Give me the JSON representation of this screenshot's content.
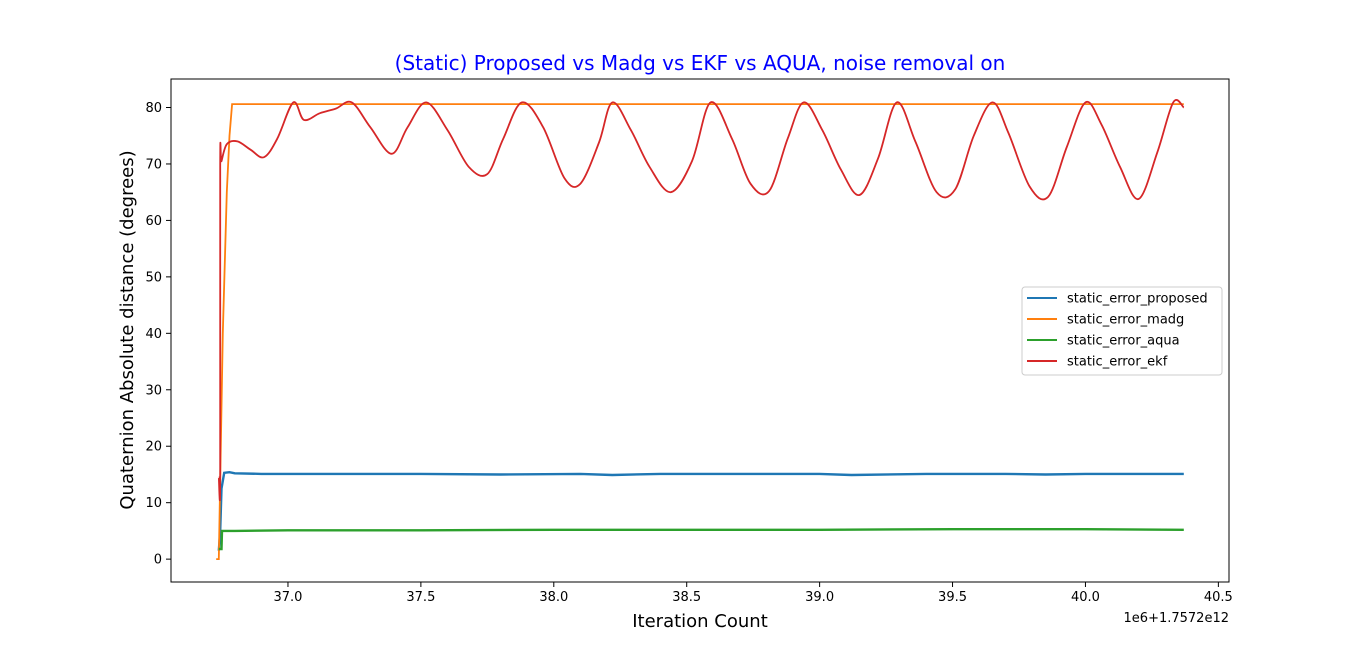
{
  "chart_data": {
    "type": "line",
    "title": "(Static) Proposed vs Madg vs EKF vs AQUA, noise removal on",
    "title_color": "#0000ff",
    "xlabel": "Iteration Count",
    "ylabel": "Quaternion Absolute distance (degrees)",
    "x_offset_label": "1e6+1.7572e12",
    "xlim": [
      36.56,
      40.54
    ],
    "ylim": [
      -4.05,
      85.05
    ],
    "x_ticks": [
      37.0,
      37.5,
      38.0,
      38.5,
      39.0,
      39.5,
      40.0,
      40.5
    ],
    "x_tick_labels": [
      "37.0",
      "37.5",
      "38.0",
      "38.5",
      "39.0",
      "39.5",
      "40.0",
      "40.5"
    ],
    "y_ticks": [
      0,
      10,
      20,
      30,
      40,
      50,
      60,
      70,
      80
    ],
    "y_tick_labels": [
      "0",
      "10",
      "20",
      "30",
      "40",
      "50",
      "60",
      "70",
      "80"
    ],
    "grid": false,
    "legend_position": "center-right",
    "series": [
      {
        "name": "static_error_proposed",
        "color": "#1f77b4",
        "x": [
          36.74,
          36.745,
          36.75,
          36.76,
          36.78,
          36.8,
          36.9,
          37.2,
          37.5,
          37.8,
          38.1,
          38.22,
          38.4,
          38.7,
          39.0,
          39.12,
          39.4,
          39.7,
          39.85,
          40.0,
          40.2,
          40.37
        ],
        "y": [
          1.5,
          5.0,
          12.5,
          15.3,
          15.4,
          15.2,
          15.1,
          15.1,
          15.1,
          15.0,
          15.1,
          14.9,
          15.1,
          15.1,
          15.1,
          14.9,
          15.1,
          15.1,
          15.0,
          15.1,
          15.1,
          15.1
        ]
      },
      {
        "name": "static_error_madg",
        "color": "#ff7f0e",
        "x": [
          36.73,
          36.74,
          36.755,
          36.77,
          36.78,
          36.79,
          37.0,
          38.0,
          39.0,
          40.0,
          40.37
        ],
        "y": [
          0.0,
          0.0,
          40.0,
          65.0,
          75.0,
          80.6,
          80.6,
          80.6,
          80.6,
          80.6,
          80.6
        ]
      },
      {
        "name": "static_error_aqua",
        "color": "#2ca02c",
        "x": [
          36.74,
          36.75,
          36.752,
          36.8,
          37.0,
          37.5,
          38.0,
          38.5,
          39.0,
          39.5,
          40.0,
          40.37
        ],
        "y": [
          1.8,
          1.8,
          5.0,
          5.0,
          5.1,
          5.1,
          5.2,
          5.2,
          5.2,
          5.3,
          5.3,
          5.2
        ]
      },
      {
        "name": "static_error_ekf",
        "color": "#d62728",
        "x": [
          36.74,
          36.745,
          36.745,
          36.75,
          36.77,
          36.81,
          36.86,
          36.91,
          36.96,
          37.02,
          37.06,
          37.12,
          37.18,
          37.24,
          37.31,
          37.39,
          37.45,
          37.52,
          37.6,
          37.68,
          37.75,
          37.81,
          37.88,
          37.96,
          38.04,
          38.1,
          38.17,
          38.22,
          38.29,
          38.36,
          38.44,
          38.52,
          38.59,
          38.67,
          38.74,
          38.81,
          38.88,
          38.94,
          39.01,
          39.08,
          39.15,
          39.22,
          39.29,
          39.36,
          39.44,
          39.51,
          39.58,
          39.65,
          39.71,
          39.79,
          39.86,
          39.93,
          40.0,
          40.06,
          40.13,
          40.2,
          40.27,
          40.33,
          40.37
        ],
        "y": [
          14.5,
          14.5,
          69.5,
          70.5,
          73.5,
          74.0,
          72.5,
          71.2,
          74.5,
          80.9,
          77.8,
          79.0,
          79.8,
          80.9,
          76.5,
          71.8,
          76.5,
          80.9,
          76.0,
          69.5,
          68.2,
          74.5,
          80.9,
          76.5,
          67.5,
          66.5,
          73.8,
          80.9,
          76.0,
          69.5,
          65.0,
          70.5,
          80.9,
          74.5,
          66.5,
          65.2,
          74.5,
          80.9,
          76.0,
          69.0,
          64.5,
          71.0,
          80.9,
          74.0,
          65.0,
          65.5,
          75.0,
          80.9,
          75.5,
          66.0,
          64.2,
          73.0,
          80.9,
          77.0,
          69.5,
          63.8,
          72.0,
          80.9,
          80.0
        ]
      }
    ]
  }
}
